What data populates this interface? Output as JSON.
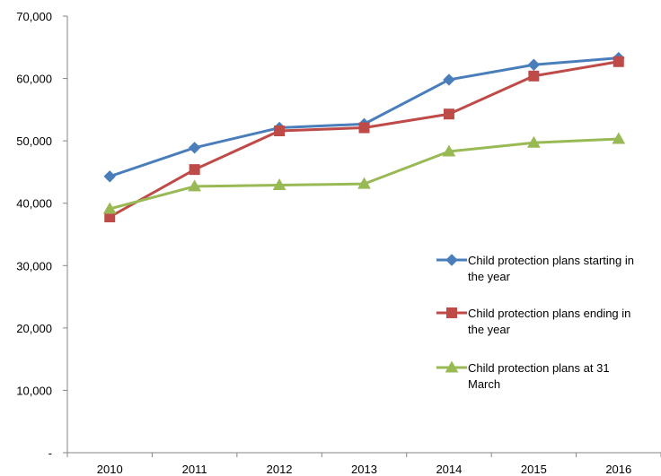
{
  "chart_data": {
    "type": "line",
    "title": "",
    "xlabel": "",
    "ylabel": "",
    "x": [
      "2010",
      "2011",
      "2012",
      "2013",
      "2014",
      "2015",
      "2016"
    ],
    "ylim": [
      0,
      70000
    ],
    "y_ticks": [
      {
        "value": 0,
        "label": "-"
      },
      {
        "value": 10000,
        "label": "10,000"
      },
      {
        "value": 20000,
        "label": "20,000"
      },
      {
        "value": 30000,
        "label": "30,000"
      },
      {
        "value": 40000,
        "label": "40,000"
      },
      {
        "value": 50000,
        "label": "50,000"
      },
      {
        "value": 60000,
        "label": "60,000"
      },
      {
        "value": 70000,
        "label": "70,000"
      }
    ],
    "grid": false,
    "legend_position": "right",
    "series": [
      {
        "name": "Child protection plans starting in the year",
        "legend_lines": [
          "Child protection plans starting in",
          "the year"
        ],
        "color": "#4a7ebb",
        "marker": "diamond",
        "values": [
          44300,
          48900,
          52100,
          52700,
          59800,
          62200,
          63300
        ]
      },
      {
        "name": "Child protection plans ending in the year",
        "legend_lines": [
          "Child protection plans ending in",
          "the year"
        ],
        "color": "#be4b48",
        "marker": "square",
        "values": [
          37800,
          45400,
          51600,
          52100,
          54300,
          60400,
          62700
        ]
      },
      {
        "name": "Child protection plans at 31 March",
        "legend_lines": [
          "Child protection plans at 31",
          "March"
        ],
        "color": "#98b954",
        "marker": "triangle",
        "values": [
          39100,
          42700,
          42900,
          43100,
          48300,
          49700,
          50300
        ]
      }
    ]
  }
}
